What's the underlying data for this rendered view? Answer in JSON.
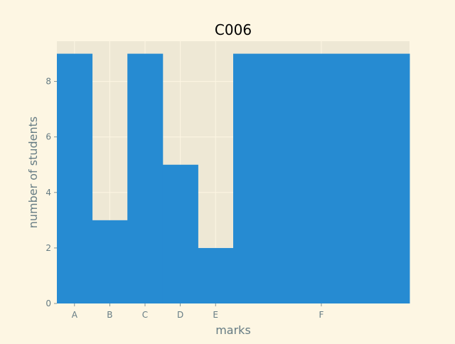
{
  "chart_data": {
    "type": "bar",
    "title": "C006",
    "xlabel": "marks",
    "ylabel": "number of students",
    "categories": [
      "A",
      "B",
      "C",
      "D",
      "E",
      "F"
    ],
    "values": [
      9,
      3,
      9,
      5,
      2,
      9
    ],
    "ylim": [
      0,
      9.45
    ],
    "yticks": [
      0,
      2,
      4,
      6,
      8
    ],
    "grid": true,
    "colors": {
      "bar": "#268bd2",
      "plot_background": "#eee8d5",
      "figure_background": "#fdf6e3",
      "grid": "#fdf6e3",
      "tick_text": "#657b83",
      "title_text": "#000000"
    }
  }
}
